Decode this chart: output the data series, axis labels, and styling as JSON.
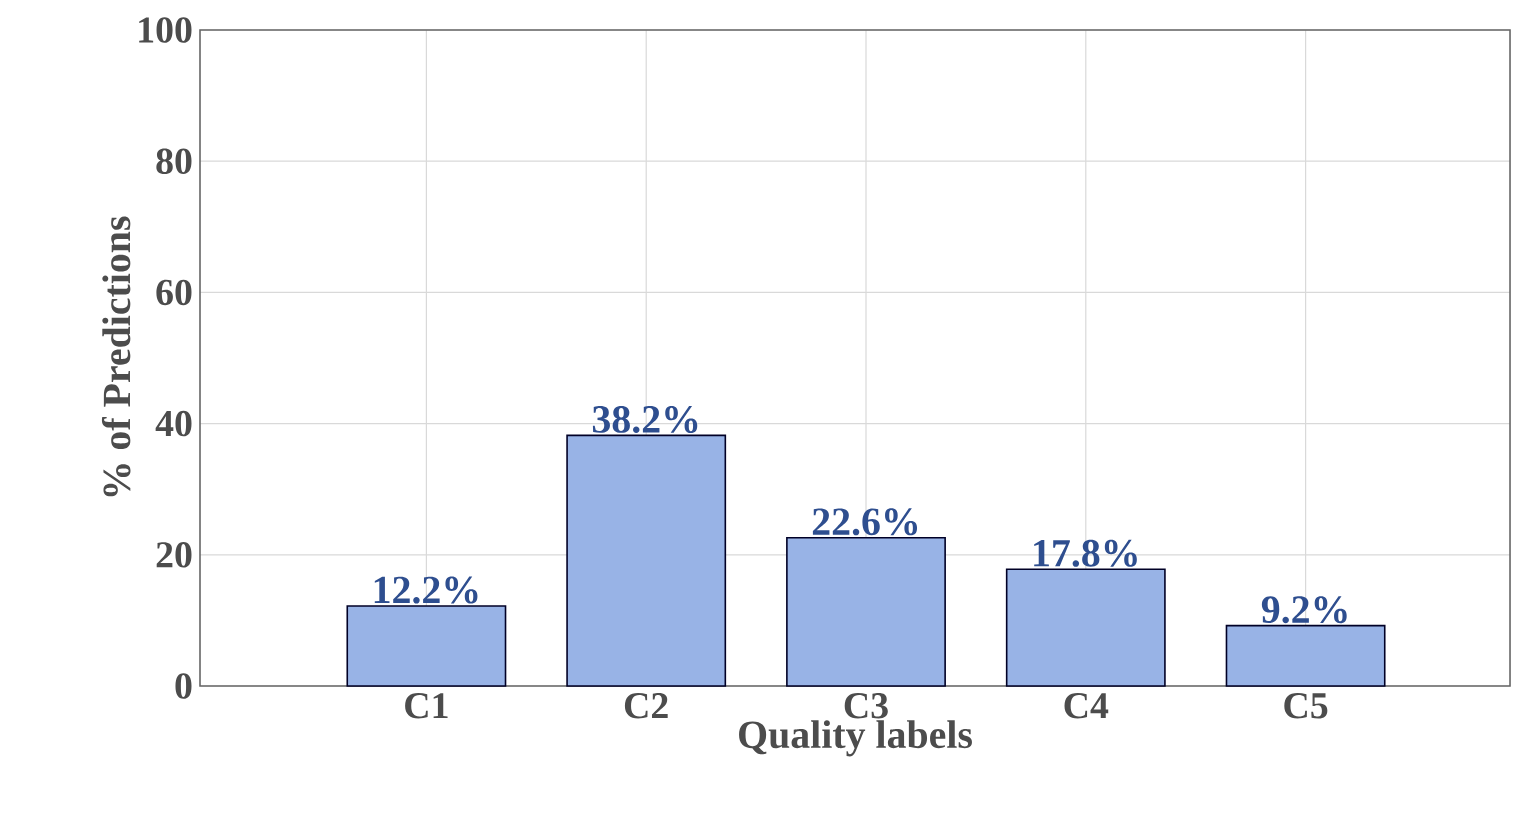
{
  "chart_data": {
    "type": "bar",
    "categories": [
      "C1",
      "C2",
      "C3",
      "C4",
      "C5"
    ],
    "values": [
      12.2,
      38.2,
      22.6,
      17.8,
      9.2
    ],
    "value_labels": [
      "12.2%",
      "38.2%",
      "22.6%",
      "17.8%",
      "9.2%"
    ],
    "color": "#98b3e6",
    "xlabel": "Quality labels",
    "ylabel": "% of Predictions",
    "ylim": [
      0,
      100
    ],
    "yticks": [
      0,
      20,
      40,
      60,
      80,
      100
    ],
    "grid": true
  }
}
